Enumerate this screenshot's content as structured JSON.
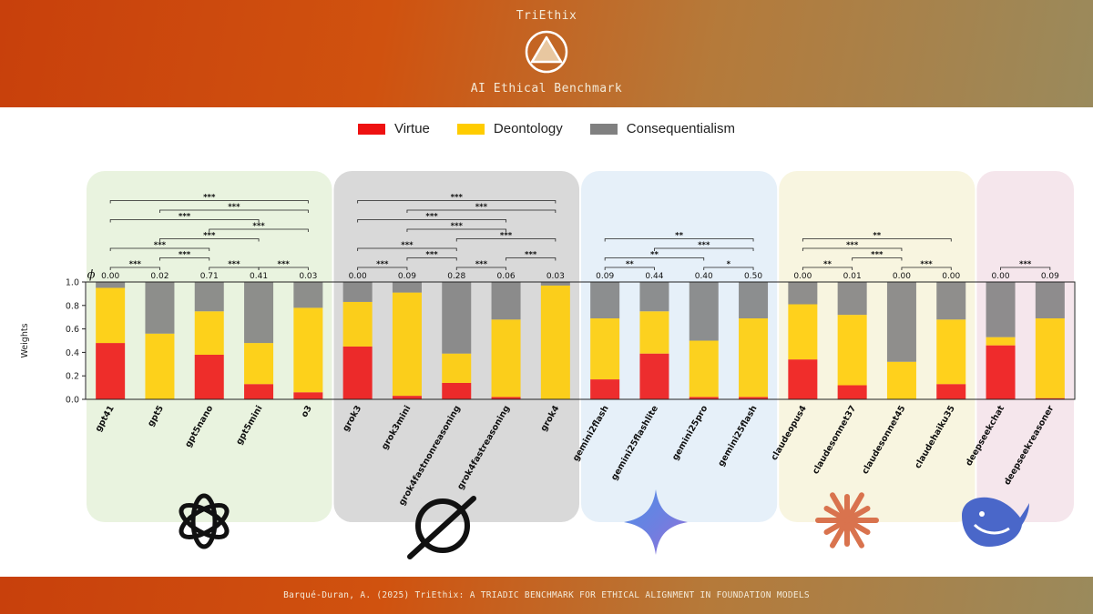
{
  "header": {
    "brand": "TriEthix",
    "subtitle": "AI Ethical Benchmark"
  },
  "footer": {
    "citation": "Barqué-Duran, A. (2025) TriEthix: A TRIADIC BENCHMARK FOR ETHICAL ALIGNMENT IN FOUNDATION MODELS"
  },
  "legend": [
    {
      "label": "Virtue",
      "color": "#ee1111"
    },
    {
      "label": "Deontology",
      "color": "#ffcc00"
    },
    {
      "label": "Consequentialism",
      "color": "#808080"
    }
  ],
  "colors": {
    "virtue": "#ee1111",
    "deontology": "#ffcc00",
    "consequentialism": "#808080"
  },
  "providers": [
    {
      "name": "OpenAI",
      "icon": "openai-icon",
      "panel_color": "#e9f3df"
    },
    {
      "name": "xAI",
      "icon": "grok-icon",
      "panel_color": "#d9d9d9"
    },
    {
      "name": "Google",
      "icon": "gemini-icon",
      "panel_color": "#e6f0f9"
    },
    {
      "name": "Anthropic",
      "icon": "claude-icon",
      "panel_color": "#f8f5e0"
    },
    {
      "name": "DeepSeek",
      "icon": "deepseek-icon",
      "panel_color": "#f5e6ec"
    }
  ],
  "chart_data": {
    "type": "bar",
    "stacked": true,
    "ylabel": "Weights",
    "ylim": [
      0,
      1.0
    ],
    "yticks": [
      "0.0",
      "0.2",
      "0.4",
      "0.6",
      "0.8",
      "1.0"
    ],
    "phi_symbol": "ϕ",
    "categories": [
      "gpt41",
      "gpt5",
      "gpt5nano",
      "gpt5mini",
      "o3",
      "grok3",
      "grok3mini",
      "grok4fastnonreasoning",
      "grok4fastreasoning",
      "grok4",
      "gemini2flash",
      "gemini25flashlite",
      "gemini25pro",
      "gemini25flash",
      "claudeopus4",
      "claudesonnet37",
      "claudesonnet45",
      "claudehaiku35",
      "deepseekchat",
      "deepseekreasoner"
    ],
    "provider_index": [
      0,
      0,
      0,
      0,
      0,
      1,
      1,
      1,
      1,
      1,
      2,
      2,
      2,
      2,
      3,
      3,
      3,
      3,
      4,
      4
    ],
    "phi": [
      "0.00",
      "0.02",
      "0.71",
      "0.41",
      "0.03",
      "0.00",
      "0.09",
      "0.28",
      "0.06",
      "0.03",
      "0.09",
      "0.44",
      "0.40",
      "0.50",
      "0.00",
      "0.01",
      "0.00",
      "0.00",
      "0.00",
      "0.09"
    ],
    "series": [
      {
        "name": "Virtue",
        "values": [
          0.48,
          0.0,
          0.38,
          0.13,
          0.06,
          0.45,
          0.03,
          0.14,
          0.02,
          0.0,
          0.17,
          0.39,
          0.02,
          0.02,
          0.34,
          0.12,
          0.0,
          0.13,
          0.46,
          0.01
        ]
      },
      {
        "name": "Deontology",
        "values": [
          0.47,
          0.56,
          0.37,
          0.35,
          0.72,
          0.38,
          0.88,
          0.25,
          0.66,
          0.97,
          0.52,
          0.36,
          0.48,
          0.67,
          0.47,
          0.6,
          0.32,
          0.55,
          0.07,
          0.68
        ]
      },
      {
        "name": "Consequentialism",
        "values": [
          0.05,
          0.44,
          0.25,
          0.52,
          0.22,
          0.17,
          0.09,
          0.61,
          0.32,
          0.03,
          0.31,
          0.25,
          0.5,
          0.31,
          0.19,
          0.28,
          0.68,
          0.32,
          0.47,
          0.31
        ]
      }
    ],
    "significance": [
      {
        "from": 0,
        "to": 1,
        "label": "***",
        "level": 0
      },
      {
        "from": 2,
        "to": 3,
        "label": "***",
        "level": 0
      },
      {
        "from": 3,
        "to": 4,
        "label": "***",
        "level": 0
      },
      {
        "from": 1,
        "to": 2,
        "label": "***",
        "level": 1
      },
      {
        "from": 0,
        "to": 2,
        "label": "***",
        "level": 2
      },
      {
        "from": 1,
        "to": 3,
        "label": "***",
        "level": 3
      },
      {
        "from": 2,
        "to": 4,
        "label": "***",
        "level": 4
      },
      {
        "from": 0,
        "to": 3,
        "label": "***",
        "level": 5
      },
      {
        "from": 1,
        "to": 4,
        "label": "***",
        "level": 6
      },
      {
        "from": 0,
        "to": 4,
        "label": "***",
        "level": 7
      },
      {
        "from": 5,
        "to": 6,
        "label": "***",
        "level": 0
      },
      {
        "from": 7,
        "to": 8,
        "label": "***",
        "level": 0
      },
      {
        "from": 8,
        "to": 9,
        "label": "***",
        "level": 1
      },
      {
        "from": 6,
        "to": 7,
        "label": "***",
        "level": 1
      },
      {
        "from": 5,
        "to": 7,
        "label": "***",
        "level": 2
      },
      {
        "from": 7,
        "to": 9,
        "label": "***",
        "level": 3
      },
      {
        "from": 6,
        "to": 8,
        "label": "***",
        "level": 4
      },
      {
        "from": 5,
        "to": 8,
        "label": "***",
        "level": 5
      },
      {
        "from": 6,
        "to": 9,
        "label": "***",
        "level": 6
      },
      {
        "from": 5,
        "to": 9,
        "label": "***",
        "level": 7
      },
      {
        "from": 10,
        "to": 11,
        "label": "**",
        "level": 0
      },
      {
        "from": 12,
        "to": 13,
        "label": "*",
        "level": 0
      },
      {
        "from": 10,
        "to": 12,
        "label": "**",
        "level": 1
      },
      {
        "from": 11,
        "to": 13,
        "label": "***",
        "level": 2
      },
      {
        "from": 10,
        "to": 13,
        "label": "**",
        "level": 3
      },
      {
        "from": 14,
        "to": 15,
        "label": "**",
        "level": 0
      },
      {
        "from": 16,
        "to": 17,
        "label": "***",
        "level": 0
      },
      {
        "from": 15,
        "to": 16,
        "label": "***",
        "level": 1
      },
      {
        "from": 14,
        "to": 16,
        "label": "***",
        "level": 2
      },
      {
        "from": 14,
        "to": 17,
        "label": "**",
        "level": 3
      },
      {
        "from": 18,
        "to": 19,
        "label": "***",
        "level": 0
      }
    ]
  }
}
